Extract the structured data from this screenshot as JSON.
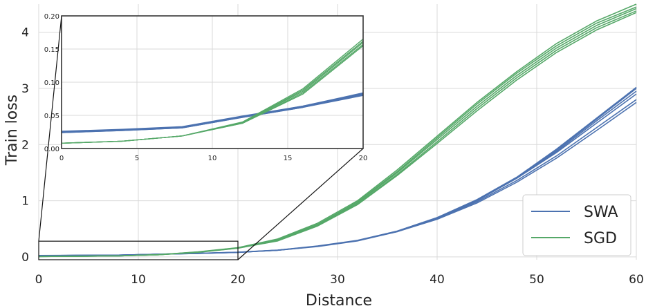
{
  "chart_data": {
    "type": "line",
    "xlabel": "Distance",
    "ylabel": "Train loss",
    "xlim": [
      0,
      60
    ],
    "ylim": [
      -0.05,
      4.5
    ],
    "xticks": [
      0,
      10,
      20,
      30,
      40,
      50,
      60
    ],
    "yticks": [
      0,
      1,
      2,
      3,
      4
    ],
    "grid": true,
    "legend": {
      "placement": "bottom-right",
      "entries": [
        "SWA",
        "SGD"
      ]
    },
    "colors": {
      "SWA": "#4c72b0",
      "SGD": "#55a868",
      "grid": "#d9d9d9",
      "frame": "#333333"
    },
    "x": [
      0,
      4,
      8,
      12,
      16,
      20,
      24,
      28,
      32,
      36,
      40,
      44,
      48,
      52,
      56,
      60
    ],
    "series": [
      {
        "name": "SWA",
        "runs": [
          [
            0.025,
            0.028,
            0.032,
            0.048,
            0.063,
            0.082,
            0.12,
            0.19,
            0.29,
            0.46,
            0.7,
            1.02,
            1.42,
            1.92,
            2.47,
            3.02
          ],
          [
            0.024,
            0.027,
            0.031,
            0.047,
            0.062,
            0.08,
            0.118,
            0.185,
            0.285,
            0.45,
            0.69,
            1.0,
            1.4,
            1.9,
            2.45,
            3.0
          ],
          [
            0.025,
            0.028,
            0.032,
            0.048,
            0.064,
            0.083,
            0.12,
            0.19,
            0.29,
            0.455,
            0.695,
            1.01,
            1.41,
            1.88,
            2.42,
            2.95
          ],
          [
            0.026,
            0.029,
            0.033,
            0.049,
            0.064,
            0.084,
            0.122,
            0.195,
            0.295,
            0.46,
            0.7,
            1.01,
            1.4,
            1.86,
            2.38,
            2.9
          ],
          [
            0.025,
            0.028,
            0.032,
            0.048,
            0.063,
            0.082,
            0.12,
            0.19,
            0.29,
            0.45,
            0.68,
            0.98,
            1.36,
            1.8,
            2.3,
            2.8
          ],
          [
            0.024,
            0.027,
            0.031,
            0.047,
            0.062,
            0.081,
            0.118,
            0.19,
            0.29,
            0.45,
            0.67,
            0.96,
            1.33,
            1.76,
            2.25,
            2.75
          ]
        ]
      },
      {
        "name": "SGD",
        "runs": [
          [
            0.008,
            0.011,
            0.019,
            0.04,
            0.09,
            0.165,
            0.32,
            0.6,
            1.0,
            1.55,
            2.15,
            2.75,
            3.3,
            3.8,
            4.2,
            4.5
          ],
          [
            0.008,
            0.011,
            0.019,
            0.039,
            0.088,
            0.162,
            0.31,
            0.58,
            0.98,
            1.52,
            2.12,
            2.72,
            3.27,
            3.76,
            4.16,
            4.45
          ],
          [
            0.008,
            0.011,
            0.019,
            0.039,
            0.086,
            0.16,
            0.3,
            0.57,
            0.96,
            1.5,
            2.09,
            2.68,
            3.23,
            3.72,
            4.12,
            4.42
          ],
          [
            0.008,
            0.011,
            0.019,
            0.038,
            0.084,
            0.157,
            0.29,
            0.56,
            0.94,
            1.47,
            2.05,
            2.64,
            3.19,
            3.68,
            4.08,
            4.38
          ],
          [
            0.008,
            0.011,
            0.019,
            0.038,
            0.082,
            0.155,
            0.285,
            0.55,
            0.93,
            1.45,
            2.02,
            2.6,
            3.15,
            3.64,
            4.04,
            4.35
          ]
        ]
      }
    ],
    "inset": {
      "xlim": [
        0,
        20
      ],
      "ylim": [
        0,
        0.2
      ],
      "xticks": [
        0,
        5,
        10,
        15,
        20
      ],
      "yticks": [
        0.0,
        0.05,
        0.1,
        0.15,
        0.2
      ],
      "ytick_labels": [
        "0.00",
        "0.05",
        "0.10",
        "0.15",
        "0.20"
      ],
      "zoom_region": {
        "x": [
          0,
          20
        ],
        "y": [
          -0.05,
          0.28
        ]
      }
    }
  }
}
